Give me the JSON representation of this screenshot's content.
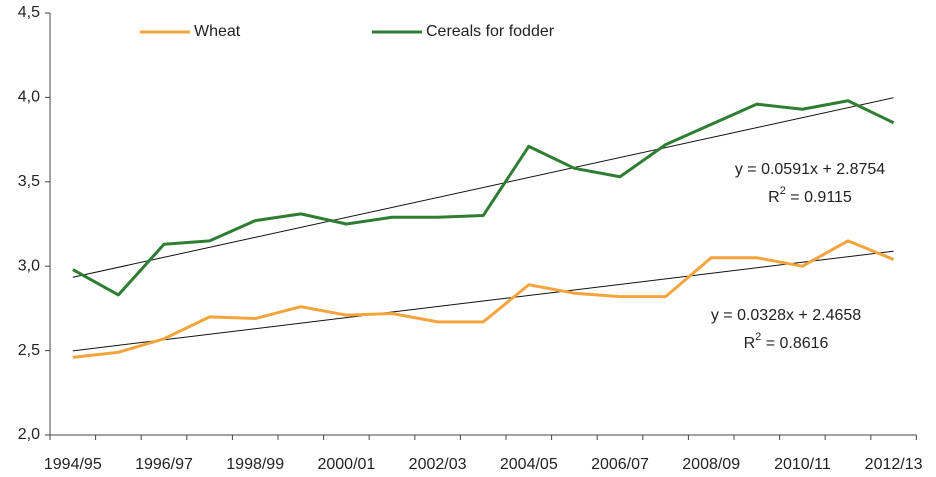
{
  "chart_data": {
    "type": "line",
    "categories": [
      "1994/95",
      null,
      "1996/97",
      null,
      "1998/99",
      null,
      "2000/01",
      null,
      "2002/03",
      null,
      "2004/05",
      null,
      "2006/07",
      null,
      "2008/09",
      null,
      "2010/11",
      null,
      "2012/13"
    ],
    "series": [
      {
        "name": "Wheat",
        "color": "#f4a43c",
        "values": [
          2.46,
          2.49,
          2.57,
          2.7,
          2.69,
          2.76,
          2.71,
          2.72,
          2.67,
          2.67,
          2.89,
          2.84,
          2.82,
          2.82,
          3.05,
          3.05,
          3.0,
          3.15,
          3.04
        ]
      },
      {
        "name": "Cereals for fodder",
        "color": "#2e7d32",
        "values": [
          2.98,
          2.83,
          3.13,
          3.15,
          3.27,
          3.31,
          3.25,
          3.29,
          3.29,
          3.3,
          3.71,
          3.58,
          3.53,
          3.72,
          3.84,
          3.96,
          3.93,
          3.98,
          3.85
        ]
      }
    ],
    "trendlines": [
      {
        "series": 0,
        "slope": 0.0328,
        "intercept": 2.4658,
        "label": "y = 0.0328x + 2.4658",
        "r2": {
          "base": "R",
          "sup": "2",
          "rest": " = 0.8616"
        }
      },
      {
        "series": 1,
        "slope": 0.0591,
        "intercept": 2.8754,
        "label": "y = 0.0591x + 2.8754",
        "r2": {
          "base": "R",
          "sup": "2",
          "rest": " = 0.9115"
        }
      }
    ],
    "ylim": [
      2,
      4.5
    ],
    "yticks": [
      {
        "value": 2,
        "label": "2,0"
      },
      {
        "value": 2.5,
        "label": "2,5"
      },
      {
        "value": 3,
        "label": "3,0"
      },
      {
        "value": 3.5,
        "label": "3,5"
      },
      {
        "value": 4,
        "label": "4,0"
      },
      {
        "value": 4.5,
        "label": "4,5"
      }
    ],
    "legend": "top"
  }
}
